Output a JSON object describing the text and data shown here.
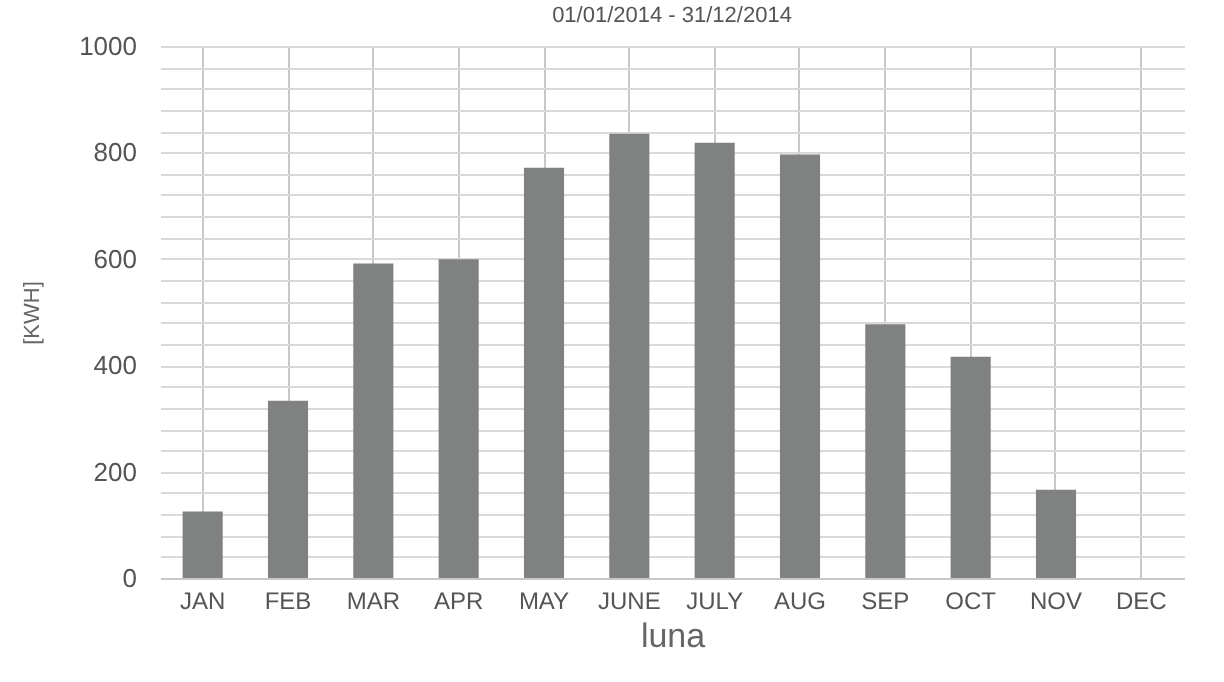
{
  "chart_data": {
    "type": "bar",
    "title": "01/01/2014 - 31/12/2014",
    "xlabel": "luna",
    "ylabel": "[KWH]",
    "categories": [
      "JAN",
      "FEB",
      "MAR",
      "APR",
      "MAY",
      "JUNE",
      "JULY",
      "AUG",
      "SEP",
      "OCT",
      "NOV",
      "DEC"
    ],
    "values": [
      125,
      333,
      591,
      599,
      771,
      835,
      818,
      796,
      477,
      416,
      166,
      null
    ],
    "color": "#7f8280",
    "ylim": [
      0,
      1000
    ],
    "yticks": [
      0,
      {
        "value": 40,
        "label": null
      },
      {
        "value": 80,
        "label": null
      },
      {
        "value": 120,
        "label": null
      },
      {
        "value": 160,
        "label": null
      },
      200,
      {
        "value": 240,
        "label": null
      },
      {
        "value": 280,
        "label": null
      },
      {
        "value": 320,
        "label": null
      },
      {
        "value": 360,
        "label": null
      },
      400,
      {
        "value": 440,
        "label": null
      },
      {
        "value": 480,
        "label": null
      },
      {
        "value": 520,
        "label": null
      },
      {
        "value": 560,
        "label": null
      },
      600,
      {
        "value": 640,
        "label": null
      },
      {
        "value": 680,
        "label": null
      },
      {
        "value": 720,
        "label": null
      },
      {
        "value": 760,
        "label": null
      },
      800,
      {
        "value": 840,
        "label": null
      },
      {
        "value": 880,
        "label": null
      },
      {
        "value": 920,
        "label": null
      },
      {
        "value": 960,
        "label": null
      },
      1000
    ],
    "grid": true
  }
}
